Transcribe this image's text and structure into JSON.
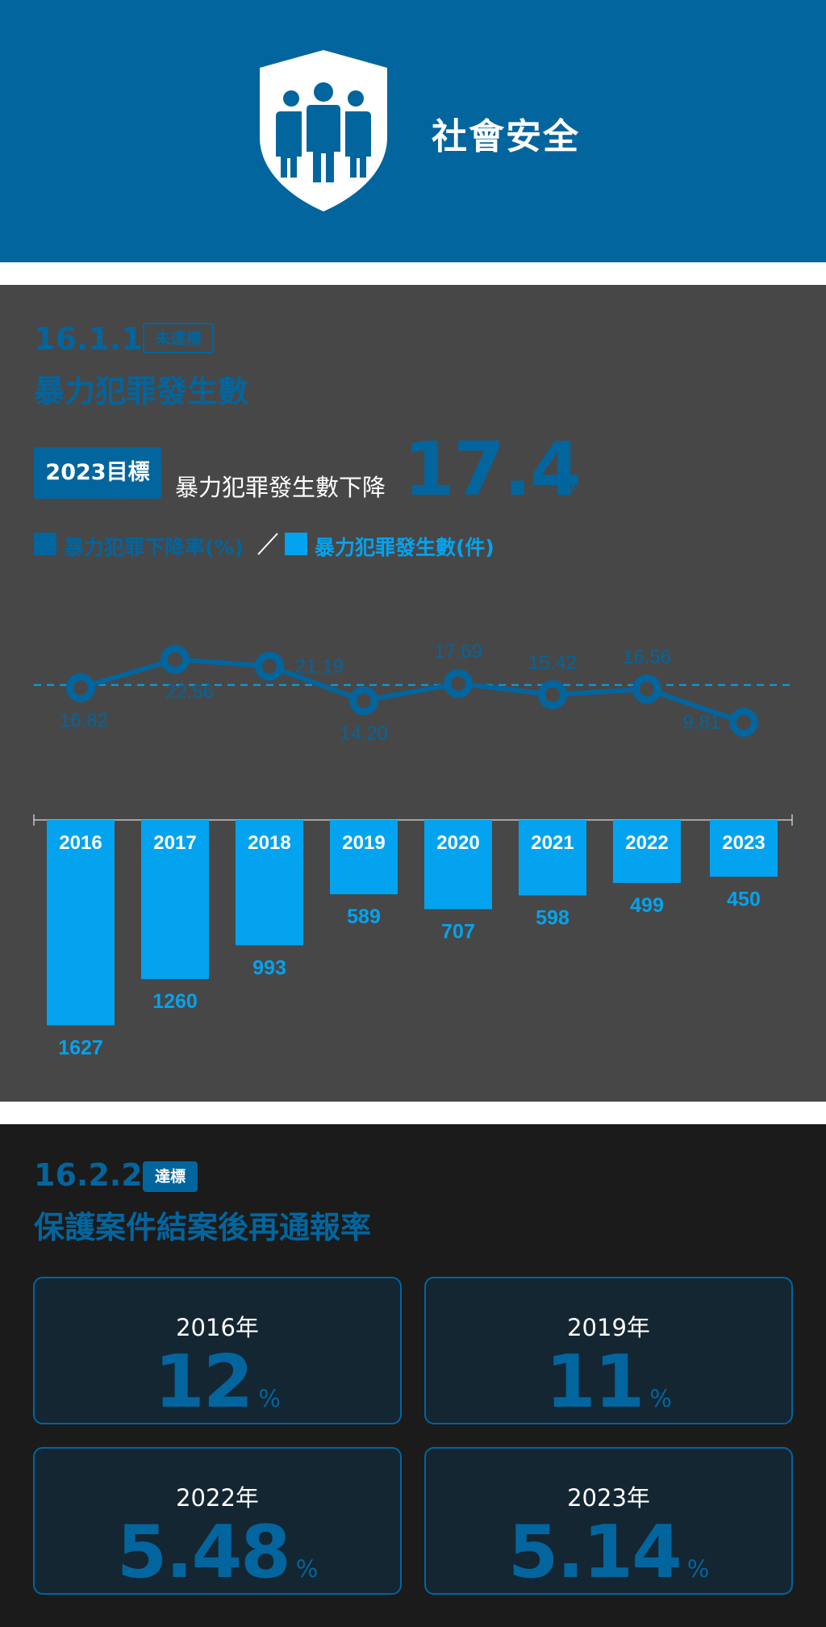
{
  "header": {
    "title": "社會安全",
    "icon": "shield-people-icon",
    "background": "#02659e"
  },
  "indicator_1": {
    "code": "16.1.1",
    "badge": "未達標",
    "title": "暴力犯罪發生數",
    "goal_label": "2023目標",
    "goal_text": "暴力犯罪發生數下降",
    "goal_value": "17.4",
    "goal_unit": "%",
    "legend": [
      {
        "label": "暴力犯罪下降率(%)",
        "color": "#02659e"
      },
      {
        "label": "暴力犯罪發生數(件)",
        "color": "#03a3ef"
      }
    ]
  },
  "chart_data": {
    "type": "bar",
    "categories": [
      "2016",
      "2017",
      "2018",
      "2019",
      "2020",
      "2021",
      "2022",
      "2023"
    ],
    "series": [
      {
        "name": "暴力犯罪下降率(%)",
        "type": "line",
        "color": "#02659e",
        "values": [
          16.82,
          22.56,
          21.19,
          14.2,
          17.69,
          15.42,
          16.56,
          9.81
        ],
        "value_labels": [
          "16.82",
          "22.56",
          "21.19",
          "14.20",
          "17.69",
          "15.42",
          "16.56",
          "9.81"
        ],
        "reference_line": 17.4
      },
      {
        "name": "暴力犯罪發生數(件)",
        "type": "bar",
        "color": "#03a3ef",
        "values": [
          1627,
          1260,
          993,
          589,
          707,
          598,
          499,
          450
        ]
      }
    ]
  },
  "indicator_2": {
    "code": "16.2.2",
    "badge": "達標",
    "title": "保護案件結案後再通報率",
    "cards": [
      {
        "year": "2016年",
        "value": "12",
        "unit": "%"
      },
      {
        "year": "2019年",
        "value": "11",
        "unit": "%"
      },
      {
        "year": "2022年",
        "value": "5.48",
        "unit": "%"
      },
      {
        "year": "2023年",
        "value": "5.14",
        "unit": "%"
      }
    ]
  }
}
